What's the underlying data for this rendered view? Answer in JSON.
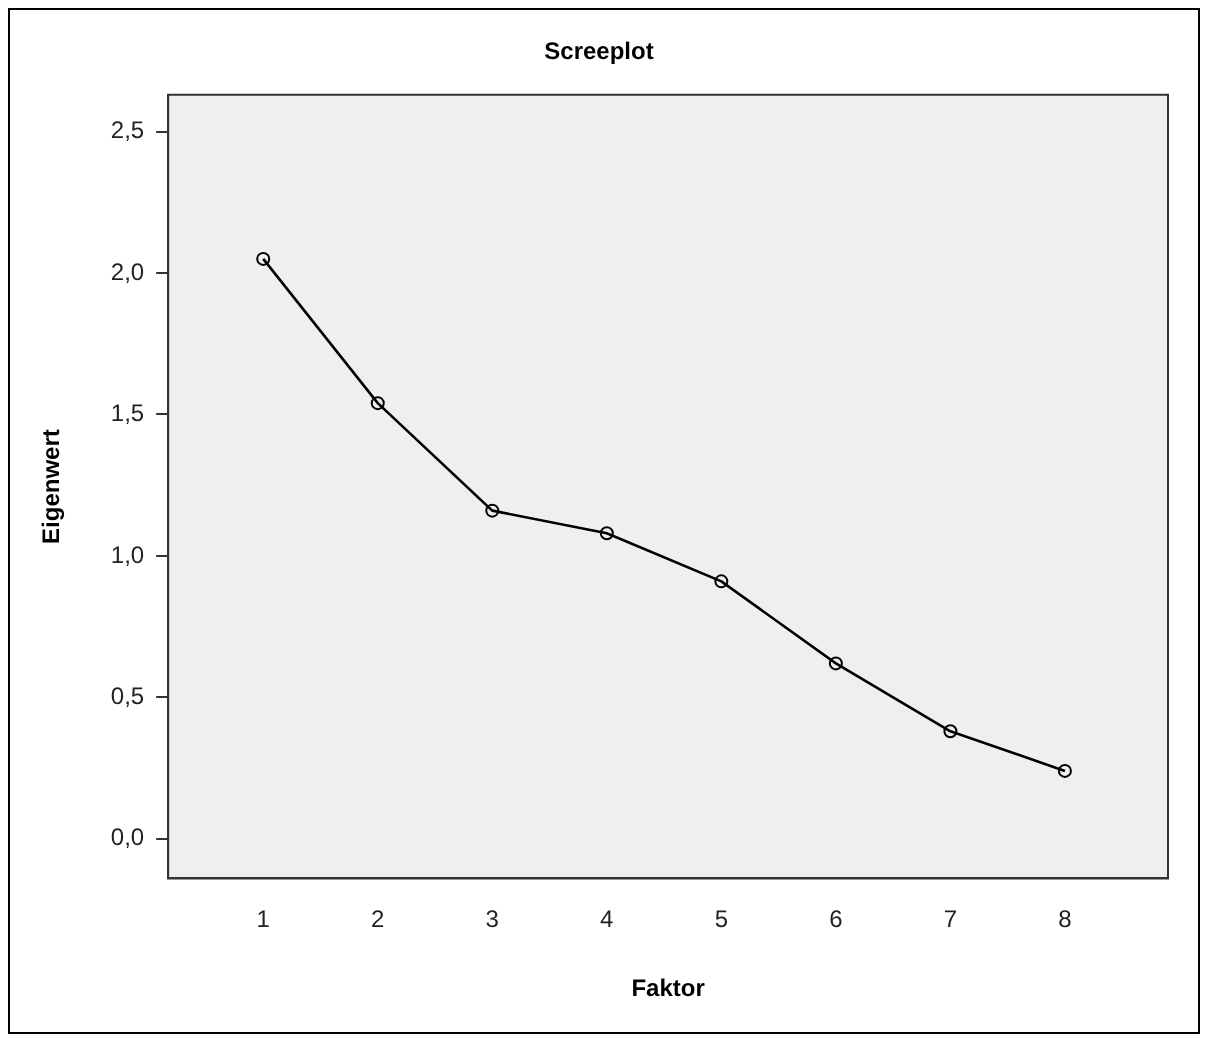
{
  "chart_data": {
    "type": "line",
    "title": "Screeplot",
    "xlabel": "Faktor",
    "ylabel": "Eigenwert",
    "x": [
      1,
      2,
      3,
      4,
      5,
      6,
      7,
      8
    ],
    "series": [
      {
        "color": "#000000",
        "values": [
          2.05,
          1.54,
          1.16,
          1.08,
          0.91,
          0.62,
          0.38,
          0.24
        ]
      }
    ],
    "xlim": [
      0.17,
      8.9
    ],
    "xticks": [
      1,
      2,
      3,
      4,
      5,
      6,
      7,
      8
    ],
    "ylim": [
      -0.14,
      2.63
    ],
    "yticks": [
      {
        "value": 0,
        "label": "0,0"
      },
      {
        "value": 0.5,
        "label": "0,5"
      },
      {
        "value": 1,
        "label": "1,0"
      },
      {
        "value": 1.5,
        "label": "1,5"
      },
      {
        "value": 2,
        "label": "2,0"
      },
      {
        "value": 2.5,
        "label": "2,5"
      }
    ],
    "grid": false,
    "legend": false,
    "marker": "circle",
    "line_style": "solid"
  }
}
